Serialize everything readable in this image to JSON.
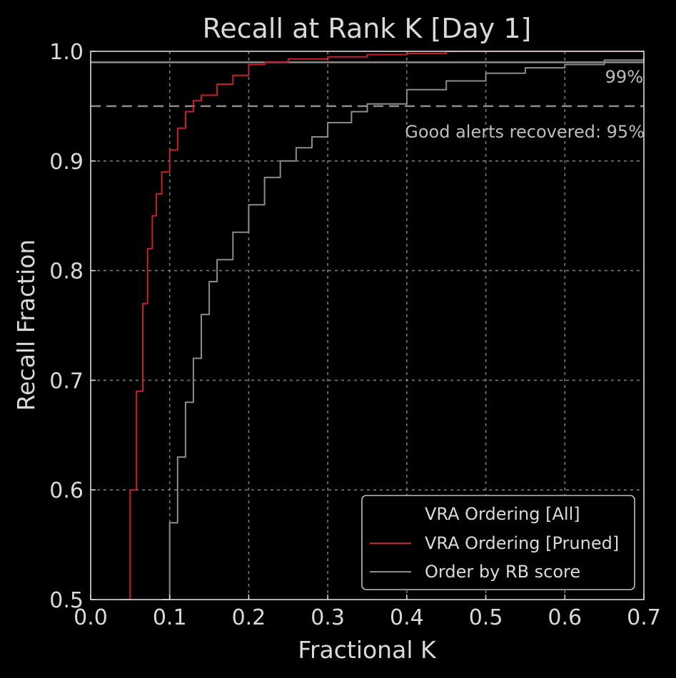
{
  "chart_data": {
    "type": "line",
    "title": "Recall at Rank K [Day 1]",
    "xlabel": "Fractional K",
    "ylabel": "Recall Fraction",
    "xlim": [
      0.0,
      0.7
    ],
    "ylim": [
      0.5,
      1.0
    ],
    "xticks": [
      "0.0",
      "0.1",
      "0.2",
      "0.3",
      "0.4",
      "0.5",
      "0.6",
      "0.7"
    ],
    "yticks": [
      "0.5",
      "0.6",
      "0.7",
      "0.8",
      "0.9",
      "1.0"
    ],
    "grid": true,
    "legend_position": "lower-right",
    "reference_lines": [
      {
        "y": 0.99,
        "label": "99%",
        "style": "solid",
        "color": "#8c8c8c"
      },
      {
        "y": 0.95,
        "label": "Good alerts recovered: 95%",
        "style": "dashed",
        "color": "#8c8c8c"
      }
    ],
    "series": [
      {
        "name": "VRA Ordering [All]",
        "color": "#000000",
        "x": [],
        "y": []
      },
      {
        "name": "VRA Ordering [Pruned]",
        "color": "#c8202e",
        "x": [
          0.038,
          0.05,
          0.058,
          0.066,
          0.072,
          0.078,
          0.083,
          0.09,
          0.1,
          0.11,
          0.12,
          0.13,
          0.14,
          0.16,
          0.18,
          0.2,
          0.22,
          0.25,
          0.3,
          0.35,
          0.4,
          0.45,
          0.5,
          0.6,
          0.7
        ],
        "y": [
          0.5,
          0.6,
          0.69,
          0.77,
          0.82,
          0.85,
          0.87,
          0.89,
          0.91,
          0.93,
          0.945,
          0.955,
          0.96,
          0.97,
          0.978,
          0.988,
          0.99,
          0.993,
          0.995,
          0.997,
          0.998,
          1.0,
          1.0,
          1.0,
          1.0
        ]
      },
      {
        "name": "Order by RB score",
        "color": "#8c8c8c",
        "x": [
          0.09,
          0.1,
          0.11,
          0.12,
          0.13,
          0.14,
          0.15,
          0.16,
          0.18,
          0.2,
          0.22,
          0.24,
          0.26,
          0.28,
          0.3,
          0.33,
          0.35,
          0.4,
          0.45,
          0.5,
          0.55,
          0.6,
          0.65,
          0.7
        ],
        "y": [
          0.5,
          0.57,
          0.63,
          0.68,
          0.72,
          0.76,
          0.79,
          0.81,
          0.835,
          0.86,
          0.885,
          0.9,
          0.912,
          0.922,
          0.935,
          0.945,
          0.952,
          0.965,
          0.973,
          0.98,
          0.985,
          0.988,
          0.992,
          0.995
        ]
      }
    ]
  }
}
